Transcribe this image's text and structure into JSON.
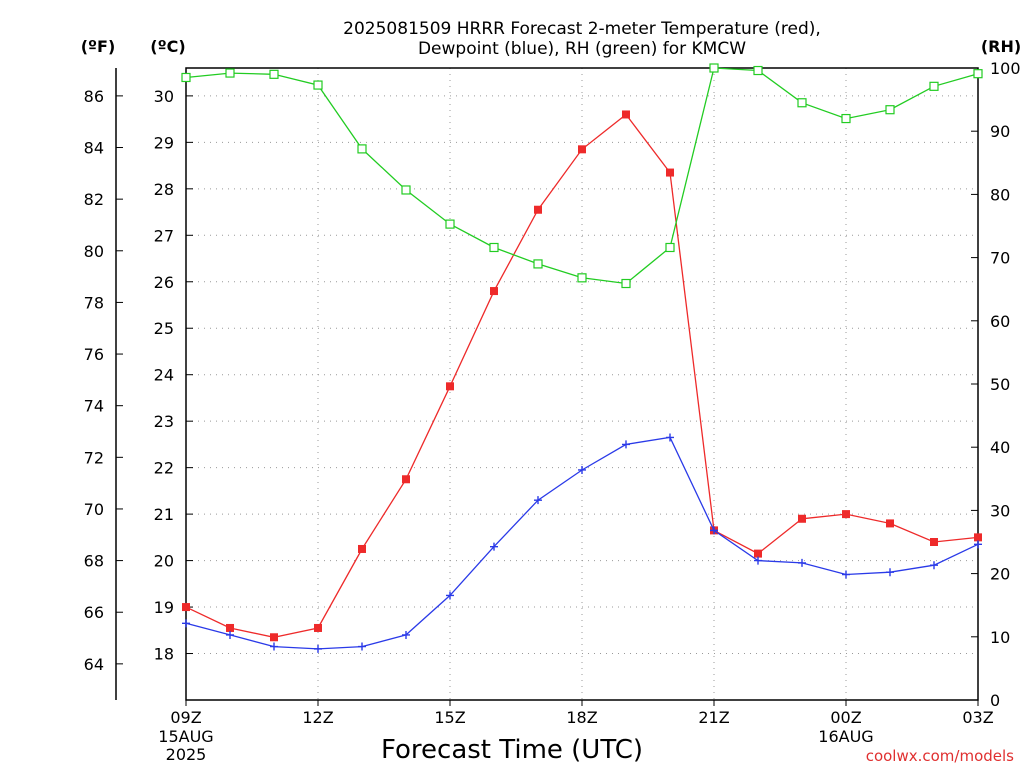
{
  "title_line1": "2025081509 HRRR Forecast 2-meter Temperature (red),",
  "title_line2": "Dewpoint (blue), RH (green) for KMCW",
  "unit_f": "(ºF)",
  "unit_c": "(ºC)",
  "unit_rh": "(RH)",
  "xlabel": "Forecast Time (UTC)",
  "credit": "coolwx.com/models",
  "colors": {
    "temperature": "#ee2a2a",
    "dewpoint": "#2a3ae8",
    "rh": "#22cc22",
    "grid": "#999999"
  },
  "chart_data": {
    "type": "line",
    "x_ticks": [
      {
        "hour": 0,
        "label": "09Z",
        "sub1": "15AUG",
        "sub2": "2025"
      },
      {
        "hour": 3,
        "label": "12Z"
      },
      {
        "hour": 6,
        "label": "15Z"
      },
      {
        "hour": 9,
        "label": "18Z"
      },
      {
        "hour": 12,
        "label": "21Z"
      },
      {
        "hour": 15,
        "label": "00Z",
        "sub1": "16AUG"
      },
      {
        "hour": 18,
        "label": "03Z"
      }
    ],
    "xlim": [
      0,
      18
    ],
    "c_axis": {
      "ylim": [
        17,
        30.6
      ],
      "ticks": [
        18,
        19,
        20,
        21,
        22,
        23,
        24,
        25,
        26,
        27,
        28,
        29,
        30
      ]
    },
    "f_axis": {
      "ticks": [
        64,
        66,
        68,
        70,
        72,
        74,
        76,
        78,
        80,
        82,
        84,
        86
      ]
    },
    "rh_axis": {
      "ylim": [
        0,
        100
      ],
      "ticks": [
        0,
        10,
        20,
        30,
        40,
        50,
        60,
        70,
        80,
        90,
        100
      ]
    },
    "series": [
      {
        "name": "Temperature",
        "axis": "c",
        "marker": "square",
        "color": "#ee2a2a",
        "values": [
          19.0,
          18.55,
          18.35,
          18.55,
          20.25,
          21.75,
          23.75,
          25.8,
          27.55,
          28.85,
          29.6,
          28.35,
          20.65,
          20.15,
          20.9,
          21.0,
          20.8,
          20.4,
          20.5
        ]
      },
      {
        "name": "Dewpoint",
        "axis": "c",
        "marker": "plus",
        "color": "#2a3ae8",
        "values": [
          18.65,
          18.4,
          18.15,
          18.1,
          18.15,
          18.4,
          19.25,
          20.3,
          21.3,
          21.95,
          22.5,
          22.65,
          20.65,
          20.0,
          19.95,
          19.7,
          19.75,
          19.9,
          20.35
        ]
      },
      {
        "name": "RH",
        "axis": "rh",
        "marker": "open-square",
        "color": "#22cc22",
        "values": [
          98.5,
          99.2,
          99.0,
          97.3,
          87.2,
          80.7,
          75.3,
          71.6,
          69.0,
          66.8,
          65.9,
          71.6,
          100.0,
          99.6,
          94.5,
          92.0,
          93.4,
          97.1,
          99.1
        ]
      }
    ]
  }
}
